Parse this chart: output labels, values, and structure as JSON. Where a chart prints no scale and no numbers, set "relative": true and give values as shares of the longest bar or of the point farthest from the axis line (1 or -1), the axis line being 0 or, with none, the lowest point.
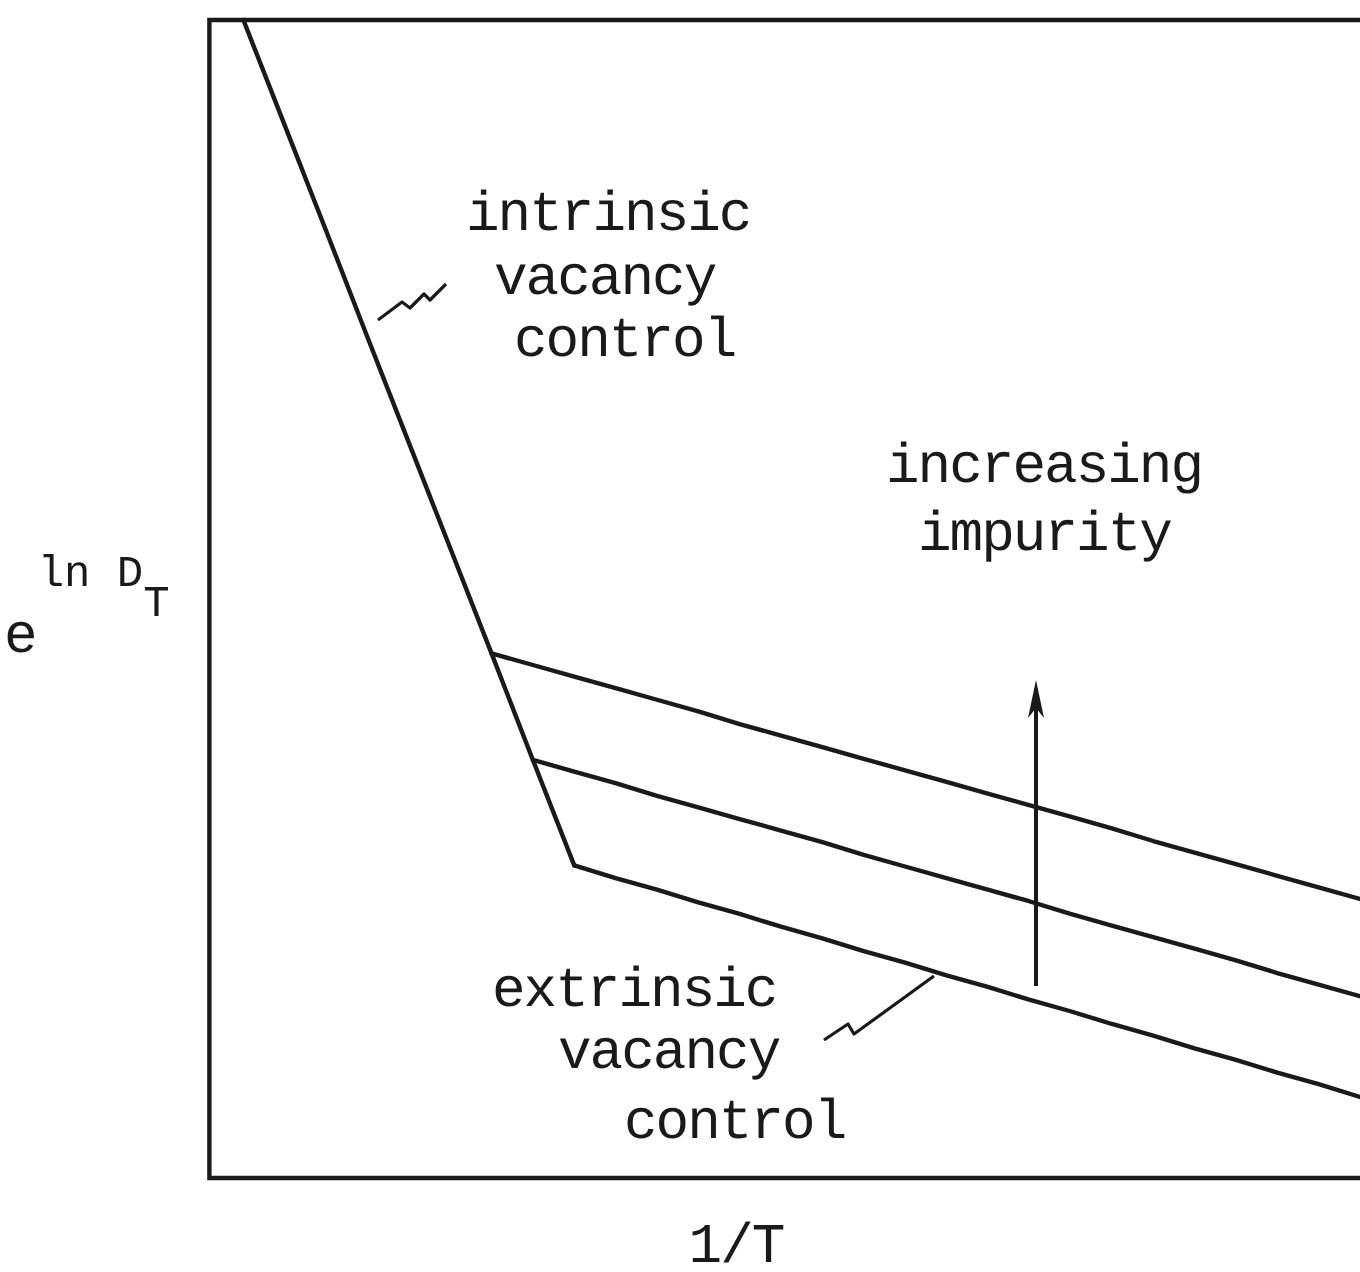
{
  "chart_data": {
    "type": "line",
    "relative": true,
    "tick_labels": false,
    "categories": [
      null,
      null,
      null,
      null,
      null,
      null,
      null,
      null,
      null,
      null,
      null,
      null,
      null,
      null,
      null,
      null,
      null,
      null,
      null,
      null,
      null,
      null,
      null,
      null,
      null,
      null,
      null,
      null
    ],
    "series": [
      {
        "color": "#1a1a1a",
        "values": [
          1,
          0.909,
          0.818,
          0.726,
          0.635,
          0.544,
          0.453,
          0.361,
          0.27,
          null,
          null,
          null,
          null,
          null,
          null,
          null,
          null,
          null,
          null,
          null,
          null,
          null,
          null,
          null,
          null,
          null,
          null,
          null
        ]
      },
      {
        "color": "#1a1a1a",
        "values": [
          null,
          null,
          null,
          null,
          null,
          null,
          0.453,
          0.443,
          0.433,
          0.423,
          0.413,
          0.403,
          0.392,
          0.382,
          0.372,
          0.362,
          0.352,
          0.342,
          0.332,
          0.322,
          0.312,
          0.302,
          0.291,
          0.281,
          0.271,
          0.261,
          0.251,
          0.241
        ]
      },
      {
        "color": "#1a1a1a",
        "values": [
          null,
          null,
          null,
          null,
          null,
          null,
          null,
          0.361,
          0.351,
          0.341,
          0.33,
          0.32,
          0.31,
          0.3,
          0.29,
          0.279,
          0.269,
          0.259,
          0.249,
          0.239,
          0.228,
          0.218,
          0.208,
          0.198,
          0.188,
          0.177,
          0.167,
          0.157
        ]
      },
      {
        "color": "#1a1a1a",
        "values": [
          null,
          null,
          null,
          null,
          null,
          null,
          null,
          null,
          0.27,
          0.259,
          0.249,
          0.238,
          0.228,
          0.217,
          0.207,
          0.196,
          0.186,
          0.175,
          0.165,
          0.154,
          0.144,
          0.133,
          0.123,
          0.112,
          0.102,
          0.091,
          0.081,
          0.07
        ]
      }
    ],
    "xlabel": "1/T",
    "ylabel": "e$^{ln D}$$_{T}$",
    "annotations": [
      "intrinsic vacancy control",
      "increasing impurity",
      "extrinsic vacancy control"
    ]
  }
}
